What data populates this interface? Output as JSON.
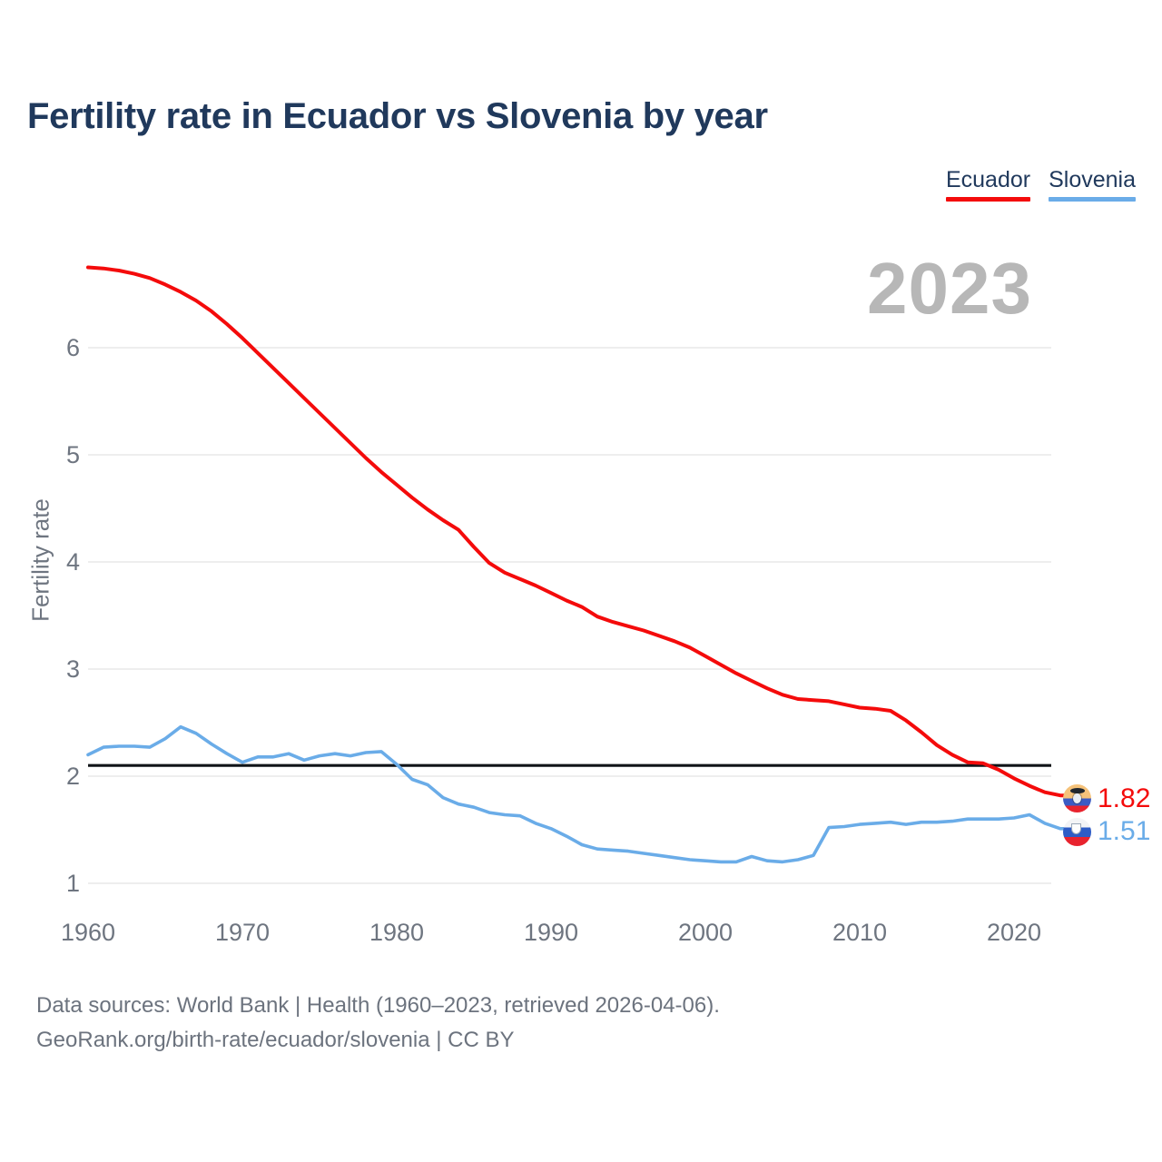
{
  "title": "Fertility rate in Ecuador vs Slovenia by year",
  "legend": {
    "items": [
      {
        "label": "Ecuador",
        "color": "#f40b0b"
      },
      {
        "label": "Slovenia",
        "color": "#6aace8"
      }
    ]
  },
  "watermark": "2023",
  "footer": {
    "line1": "Data sources: World Bank | Health (1960–2023, retrieved 2026-04-06).",
    "line2": "GeoRank.org/birth-rate/ecuador/slovenia | CC BY"
  },
  "chart_data": {
    "type": "line",
    "title": "Fertility rate in Ecuador vs Slovenia by year",
    "xlabel": "",
    "ylabel": "Fertility rate",
    "x_start": 1960,
    "x_end": 2023,
    "xticks": [
      1960,
      1970,
      1980,
      1990,
      2000,
      2010,
      2020
    ],
    "yticks": [
      1,
      2,
      3,
      4,
      5,
      6
    ],
    "ylim": [
      1,
      7
    ],
    "grid": "horizontal",
    "legend_position": "top-right",
    "watermark_year": "2023",
    "reference_line": {
      "value": 2.1,
      "color": "#101418"
    },
    "series": [
      {
        "name": "Ecuador",
        "color": "#f40b0b",
        "end_label": "1.82",
        "flag_icon": "ecuador-flag-icon",
        "values": [
          6.75,
          6.74,
          6.72,
          6.69,
          6.65,
          6.59,
          6.52,
          6.44,
          6.34,
          6.22,
          6.09,
          5.95,
          5.81,
          5.67,
          5.53,
          5.39,
          5.25,
          5.11,
          4.97,
          4.84,
          4.72,
          4.6,
          4.49,
          4.39,
          4.3,
          4.14,
          3.99,
          3.9,
          3.84,
          3.78,
          3.71,
          3.64,
          3.58,
          3.49,
          3.44,
          3.4,
          3.36,
          3.31,
          3.26,
          3.2,
          3.12,
          3.04,
          2.96,
          2.89,
          2.82,
          2.76,
          2.72,
          2.71,
          2.7,
          2.67,
          2.64,
          2.63,
          2.61,
          2.52,
          2.41,
          2.29,
          2.2,
          2.13,
          2.12,
          2.06,
          1.98,
          1.91,
          1.85,
          1.82
        ]
      },
      {
        "name": "Slovenia",
        "color": "#6aace8",
        "end_label": "1.51",
        "flag_icon": "slovenia-flag-icon",
        "values": [
          2.2,
          2.27,
          2.28,
          2.28,
          2.27,
          2.35,
          2.46,
          2.4,
          2.3,
          2.21,
          2.13,
          2.18,
          2.18,
          2.21,
          2.15,
          2.19,
          2.21,
          2.19,
          2.22,
          2.23,
          2.11,
          1.97,
          1.92,
          1.8,
          1.74,
          1.71,
          1.66,
          1.64,
          1.63,
          1.56,
          1.51,
          1.44,
          1.36,
          1.32,
          1.31,
          1.3,
          1.28,
          1.26,
          1.24,
          1.22,
          1.21,
          1.2,
          1.2,
          1.25,
          1.21,
          1.2,
          1.22,
          1.26,
          1.52,
          1.53,
          1.55,
          1.56,
          1.57,
          1.55,
          1.57,
          1.57,
          1.58,
          1.6,
          1.6,
          1.6,
          1.61,
          1.64,
          1.56,
          1.51
        ]
      }
    ]
  }
}
